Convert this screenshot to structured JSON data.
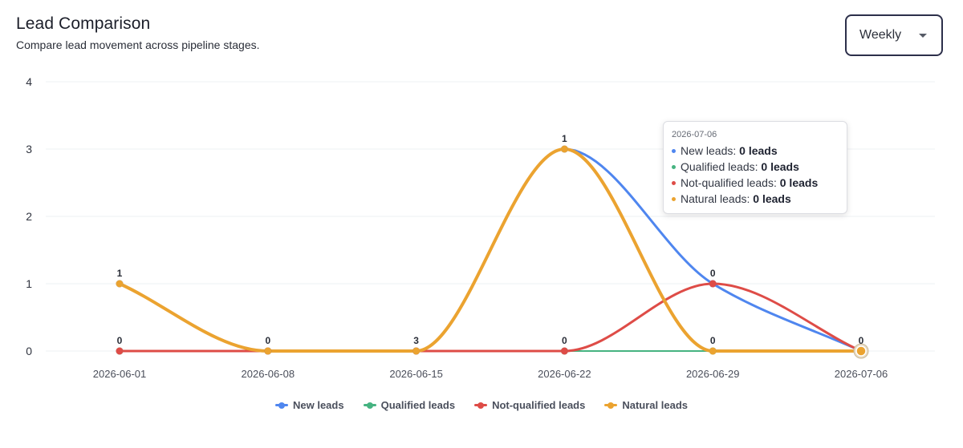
{
  "header": {
    "title": "Lead Comparison",
    "subtitle": "Compare lead movement across pipeline stages."
  },
  "period_select": {
    "value": "Weekly"
  },
  "tooltip": {
    "title": "2026-07-06",
    "rows": [
      {
        "label": "New leads:",
        "value": "0 leads",
        "color": "#4f86ef"
      },
      {
        "label": "Qualified leads:",
        "value": "0 leads",
        "color": "#46b381"
      },
      {
        "label": "Not-qualified leads:",
        "value": "0 leads",
        "color": "#de4c47"
      },
      {
        "label": "Natural leads:",
        "value": "0 leads",
        "color": "#eba330"
      }
    ]
  },
  "chart_data": {
    "type": "line",
    "categories": [
      "2026-06-01",
      "2026-06-08",
      "2026-06-15",
      "2026-06-22",
      "2026-06-29",
      "2026-07-06"
    ],
    "ylim": [
      0,
      4
    ],
    "yticks": [
      0,
      1,
      2,
      3,
      4
    ],
    "grid": true,
    "legend": "bottom",
    "data_labels": [
      "1",
      "0",
      "0",
      "3",
      "1",
      "0",
      "0",
      "0",
      "0",
      "0",
      "0"
    ],
    "series": [
      {
        "name": "New leads",
        "color": "#4f86ef",
        "values": [
          1,
          0,
          0,
          3,
          1,
          0
        ]
      },
      {
        "name": "Qualified leads",
        "color": "#46b381",
        "values": [
          0,
          0,
          0,
          0,
          0,
          0
        ]
      },
      {
        "name": "Not-qualified leads",
        "color": "#de4c47",
        "values": [
          0,
          0,
          0,
          0,
          1,
          0
        ]
      },
      {
        "name": "Natural leads",
        "color": "#eba330",
        "values": [
          1,
          0,
          0,
          3,
          0,
          0
        ]
      }
    ]
  }
}
